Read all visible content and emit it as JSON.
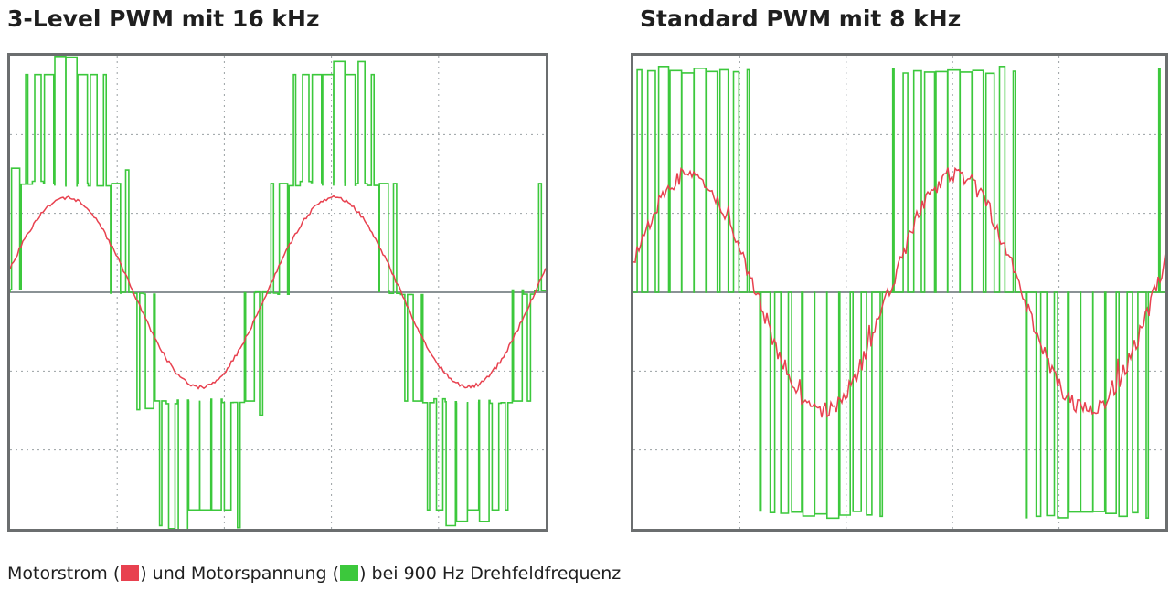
{
  "chart_data": [
    {
      "type": "line",
      "title": "3-Level PWM mit 16 kHz",
      "pwm_levels": 3,
      "switching_frequency_khz": 16,
      "fundamental_frequency_hz": 900,
      "cycles_shown": 2,
      "grid": true,
      "grid_divisions": {
        "x": 5,
        "y": 6
      },
      "series": [
        {
          "name": "Motorstrom",
          "color": "#e8414f",
          "waveform": "sine",
          "noise": "low"
        },
        {
          "name": "Motorspannung",
          "color": "#3cc83c",
          "waveform": "pwm-3-level"
        }
      ]
    },
    {
      "type": "line",
      "title": "Standard PWM mit 8 kHz",
      "pwm_levels": 2,
      "switching_frequency_khz": 8,
      "fundamental_frequency_hz": 900,
      "cycles_shown": 2,
      "grid": true,
      "grid_divisions": {
        "x": 5,
        "y": 6
      },
      "series": [
        {
          "name": "Motorstrom",
          "color": "#e8414f",
          "waveform": "sine",
          "noise": "high"
        },
        {
          "name": "Motorspannung",
          "color": "#3cc83c",
          "waveform": "pwm-2-level"
        }
      ]
    }
  ],
  "caption": {
    "part1": "Motorstrom (",
    "part2": ") und Motorspannung (",
    "part3": ") bei 900 Hz Drehfeldfrequenz",
    "current_color": "#e8414f",
    "voltage_color": "#3cc83c"
  },
  "colors": {
    "frame": "#6b6e6f",
    "grid": "#9aa0a3",
    "axis": "#8a9295"
  }
}
